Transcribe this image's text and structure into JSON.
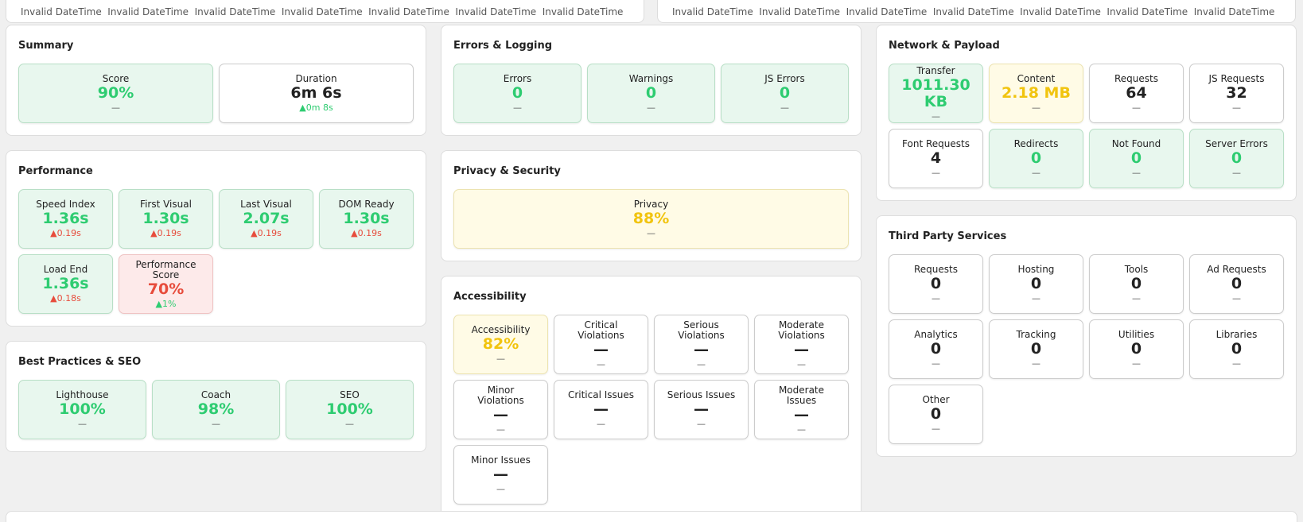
{
  "top_strips": [
    [
      "Invalid DateTime",
      "Invalid DateTime",
      "Invalid DateTime",
      "Invalid DateTime",
      "Invalid DateTime",
      "Invalid DateTime",
      "Invalid DateTime"
    ],
    [
      "Invalid DateTime",
      "Invalid DateTime",
      "Invalid DateTime",
      "Invalid DateTime",
      "Invalid DateTime",
      "Invalid DateTime",
      "Invalid DateTime"
    ]
  ],
  "columns": [
    [
      {
        "title": "Summary",
        "tiles": [
          {
            "label": "Score",
            "value": "90%",
            "delta": "—",
            "status": "good"
          },
          {
            "label": "Duration",
            "value": "6m 6s",
            "delta": "0m 8s",
            "status": "neutral",
            "trend": "up",
            "trend_tone": "good"
          }
        ]
      },
      {
        "title": "Performance",
        "tiles": [
          {
            "label": "Speed Index",
            "value": "1.36s",
            "delta": "0.19s",
            "status": "good",
            "trend": "up",
            "trend_tone": "bad"
          },
          {
            "label": "First Visual",
            "value": "1.30s",
            "delta": "0.19s",
            "status": "good",
            "trend": "up",
            "trend_tone": "bad"
          },
          {
            "label": "Last Visual",
            "value": "2.07s",
            "delta": "0.19s",
            "status": "good",
            "trend": "up",
            "trend_tone": "bad"
          },
          {
            "label": "DOM Ready",
            "value": "1.30s",
            "delta": "0.19s",
            "status": "good",
            "trend": "up",
            "trend_tone": "bad"
          },
          {
            "label": "Load End",
            "value": "1.36s",
            "delta": "0.18s",
            "status": "good",
            "trend": "up",
            "trend_tone": "bad"
          },
          {
            "label": "Performance Score",
            "value": "70%",
            "delta": "1%",
            "status": "bad",
            "trend": "up",
            "trend_tone": "good"
          }
        ]
      },
      {
        "title": "Best Practices & SEO",
        "tiles": [
          {
            "label": "Lighthouse",
            "value": "100%",
            "delta": "—",
            "status": "good"
          },
          {
            "label": "Coach",
            "value": "98%",
            "delta": "—",
            "status": "good"
          },
          {
            "label": "SEO",
            "value": "100%",
            "delta": "—",
            "status": "good"
          }
        ]
      }
    ],
    [
      {
        "title": "Errors & Logging",
        "tiles": [
          {
            "label": "Errors",
            "value": "0",
            "delta": "—",
            "status": "good"
          },
          {
            "label": "Warnings",
            "value": "0",
            "delta": "—",
            "status": "good"
          },
          {
            "label": "JS Errors",
            "value": "0",
            "delta": "—",
            "status": "good"
          }
        ]
      },
      {
        "title": "Privacy & Security",
        "tiles": [
          {
            "label": "Privacy",
            "value": "88%",
            "delta": "—",
            "status": "warn"
          }
        ]
      },
      {
        "title": "Accessibility",
        "tiles": [
          {
            "label": "Accessibility",
            "value": "82%",
            "delta": "—",
            "status": "warn"
          },
          {
            "label": "Critical Violations",
            "value": "—",
            "delta": "—",
            "status": "neutral"
          },
          {
            "label": "Serious Violations",
            "value": "—",
            "delta": "—",
            "status": "neutral"
          },
          {
            "label": "Moderate Violations",
            "value": "—",
            "delta": "—",
            "status": "neutral"
          },
          {
            "label": "Minor Violations",
            "value": "—",
            "delta": "—",
            "status": "neutral"
          },
          {
            "label": "Critical Issues",
            "value": "—",
            "delta": "—",
            "status": "neutral"
          },
          {
            "label": "Serious Issues",
            "value": "—",
            "delta": "—",
            "status": "neutral"
          },
          {
            "label": "Moderate Issues",
            "value": "—",
            "delta": "—",
            "status": "neutral"
          },
          {
            "label": "Minor Issues",
            "value": "—",
            "delta": "—",
            "status": "neutral"
          }
        ]
      }
    ],
    [
      {
        "title": "Network & Payload",
        "tiles": [
          {
            "label": "Transfer",
            "value": "1011.30 KB",
            "delta": "—",
            "status": "good"
          },
          {
            "label": "Content",
            "value": "2.18 MB",
            "delta": "—",
            "status": "warn"
          },
          {
            "label": "Requests",
            "value": "64",
            "delta": "—",
            "status": "neutral"
          },
          {
            "label": "JS Requests",
            "value": "32",
            "delta": "—",
            "status": "neutral"
          },
          {
            "label": "Font Requests",
            "value": "4",
            "delta": "—",
            "status": "neutral"
          },
          {
            "label": "Redirects",
            "value": "0",
            "delta": "—",
            "status": "good"
          },
          {
            "label": "Not Found",
            "value": "0",
            "delta": "—",
            "status": "good"
          },
          {
            "label": "Server Errors",
            "value": "0",
            "delta": "—",
            "status": "good"
          }
        ]
      },
      {
        "title": "Third Party Services",
        "tiles": [
          {
            "label": "Requests",
            "value": "0",
            "delta": "—",
            "status": "neutral"
          },
          {
            "label": "Hosting",
            "value": "0",
            "delta": "—",
            "status": "neutral"
          },
          {
            "label": "Tools",
            "value": "0",
            "delta": "—",
            "status": "neutral"
          },
          {
            "label": "Ad Requests",
            "value": "0",
            "delta": "—",
            "status": "neutral"
          },
          {
            "label": "Analytics",
            "value": "0",
            "delta": "—",
            "status": "neutral"
          },
          {
            "label": "Tracking",
            "value": "0",
            "delta": "—",
            "status": "neutral"
          },
          {
            "label": "Utilities",
            "value": "0",
            "delta": "—",
            "status": "neutral"
          },
          {
            "label": "Libraries",
            "value": "0",
            "delta": "—",
            "status": "neutral"
          },
          {
            "label": "Other",
            "value": "0",
            "delta": "—",
            "status": "neutral"
          }
        ]
      }
    ]
  ]
}
